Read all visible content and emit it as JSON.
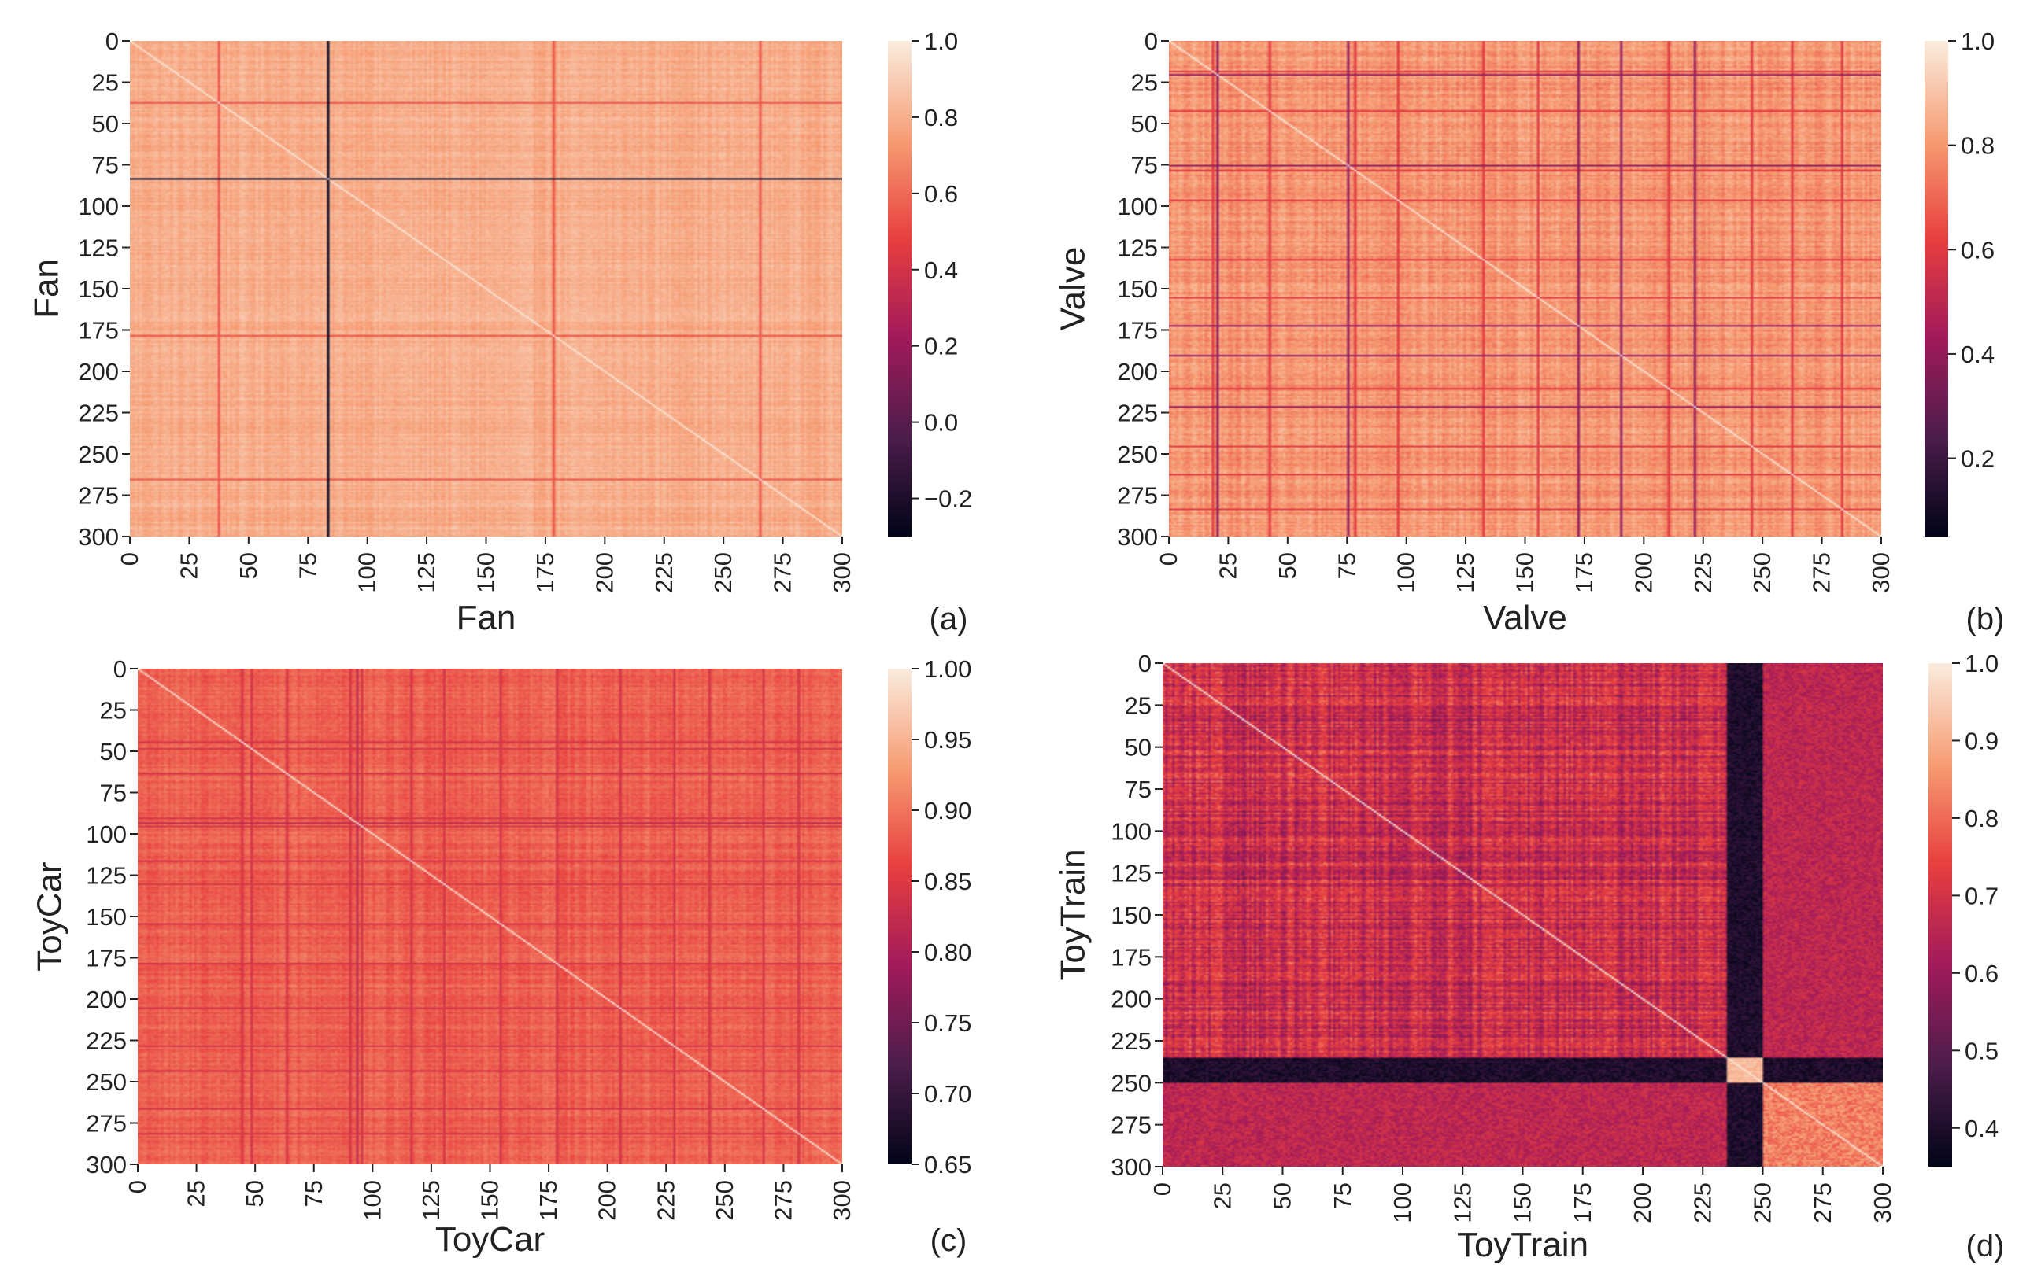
{
  "figure": {
    "background": "#ffffff"
  },
  "colormap": {
    "name": "rocket",
    "stops": [
      "#03051a",
      "#4c1d4b",
      "#a11a5b",
      "#e83f3f",
      "#f69c73",
      "#faebdd"
    ]
  },
  "chart_data": [
    {
      "type": "heatmap",
      "panel_label": "(a)",
      "title": "",
      "xlabel": "Fan",
      "ylabel": "Fan",
      "x_ticks": [
        "0",
        "25",
        "50",
        "75",
        "100",
        "125",
        "150",
        "175",
        "200",
        "225",
        "250",
        "275",
        "300"
      ],
      "y_ticks": [
        "0",
        "25",
        "50",
        "75",
        "100",
        "125",
        "150",
        "175",
        "200",
        "225",
        "250",
        "275",
        "300"
      ],
      "size": 300,
      "vmin": -0.3,
      "vmax": 1.0,
      "colorbar_ticks": [
        "1.0",
        "0.8",
        "0.6",
        "0.4",
        "0.2",
        "0.0",
        "−0.2"
      ],
      "colorbar_values": [
        1.0,
        0.8,
        0.6,
        0.4,
        0.2,
        0.0,
        -0.2
      ],
      "base_value": 0.8,
      "jitter": 0.06,
      "diagonal_value": 1.0,
      "line_value": 0.55,
      "line_indices": [
        37,
        178,
        265
      ],
      "dark_value": -0.25,
      "dark_indices": [
        83
      ],
      "block": null
    },
    {
      "type": "heatmap",
      "panel_label": "(b)",
      "title": "",
      "xlabel": "Valve",
      "ylabel": "Valve",
      "x_ticks": [
        "0",
        "25",
        "50",
        "75",
        "100",
        "125",
        "150",
        "175",
        "200",
        "225",
        "250",
        "275",
        "300"
      ],
      "y_ticks": [
        "0",
        "25",
        "50",
        "75",
        "100",
        "125",
        "150",
        "175",
        "200",
        "225",
        "250",
        "275",
        "300"
      ],
      "size": 300,
      "vmin": 0.05,
      "vmax": 1.0,
      "colorbar_ticks": [
        "1.0",
        "0.8",
        "0.6",
        "0.4",
        "0.2"
      ],
      "colorbar_values": [
        1.0,
        0.8,
        0.6,
        0.4,
        0.2
      ],
      "base_value": 0.8,
      "jitter": 0.07,
      "diagonal_value": 1.0,
      "line_value": 0.6,
      "line_indices": [
        18,
        42,
        78,
        96,
        132,
        155,
        210,
        245,
        262,
        283
      ],
      "dark_value": 0.4,
      "dark_indices": [
        20,
        75,
        172,
        190,
        221
      ],
      "block": null
    },
    {
      "type": "heatmap",
      "panel_label": "(c)",
      "title": "",
      "xlabel": "ToyCar",
      "ylabel": "ToyCar",
      "x_ticks": [
        "0",
        "25",
        "50",
        "75",
        "100",
        "125",
        "150",
        "175",
        "200",
        "225",
        "250",
        "275",
        "300"
      ],
      "y_ticks": [
        "0",
        "25",
        "50",
        "75",
        "100",
        "125",
        "150",
        "175",
        "200",
        "225",
        "250",
        "275",
        "300"
      ],
      "size": 300,
      "vmin": 0.65,
      "vmax": 1.0,
      "colorbar_ticks": [
        "1.00",
        "0.95",
        "0.90",
        "0.85",
        "0.80",
        "0.75",
        "0.70",
        "0.65"
      ],
      "colorbar_values": [
        1.0,
        0.95,
        0.9,
        0.85,
        0.8,
        0.75,
        0.7,
        0.65
      ],
      "base_value": 0.885,
      "jitter": 0.02,
      "diagonal_value": 1.0,
      "line_value": 0.84,
      "line_indices": [
        44,
        48,
        63,
        90,
        95,
        116,
        130,
        154,
        178,
        205,
        228,
        243,
        266,
        281
      ],
      "dark_value": 0.82,
      "dark_indices": [
        93
      ],
      "block": null
    },
    {
      "type": "heatmap",
      "panel_label": "(d)",
      "title": "",
      "xlabel": "ToyTrain",
      "ylabel": "ToyTrain",
      "x_ticks": [
        "0",
        "25",
        "50",
        "75",
        "100",
        "125",
        "150",
        "175",
        "200",
        "225",
        "250",
        "275",
        "300"
      ],
      "y_ticks": [
        "0",
        "25",
        "50",
        "75",
        "100",
        "125",
        "150",
        "175",
        "200",
        "225",
        "250",
        "275",
        "300"
      ],
      "size": 300,
      "vmin": 0.35,
      "vmax": 1.0,
      "colorbar_ticks": [
        "1.0",
        "0.9",
        "0.8",
        "0.7",
        "0.6",
        "0.5",
        "0.4"
      ],
      "colorbar_values": [
        1.0,
        0.9,
        0.8,
        0.7,
        0.6,
        0.5,
        0.4
      ],
      "base_value": 0.68,
      "jitter": 0.1,
      "diagonal_value": 1.0,
      "line_value": 0.62,
      "line_indices": [],
      "dark_value": 0.62,
      "dark_indices": [],
      "block": {
        "start": 235,
        "end": 250,
        "cross_value": 0.4,
        "inner_value": 0.92,
        "tail_value": 0.83,
        "tail_cross_value": 0.66
      }
    }
  ]
}
